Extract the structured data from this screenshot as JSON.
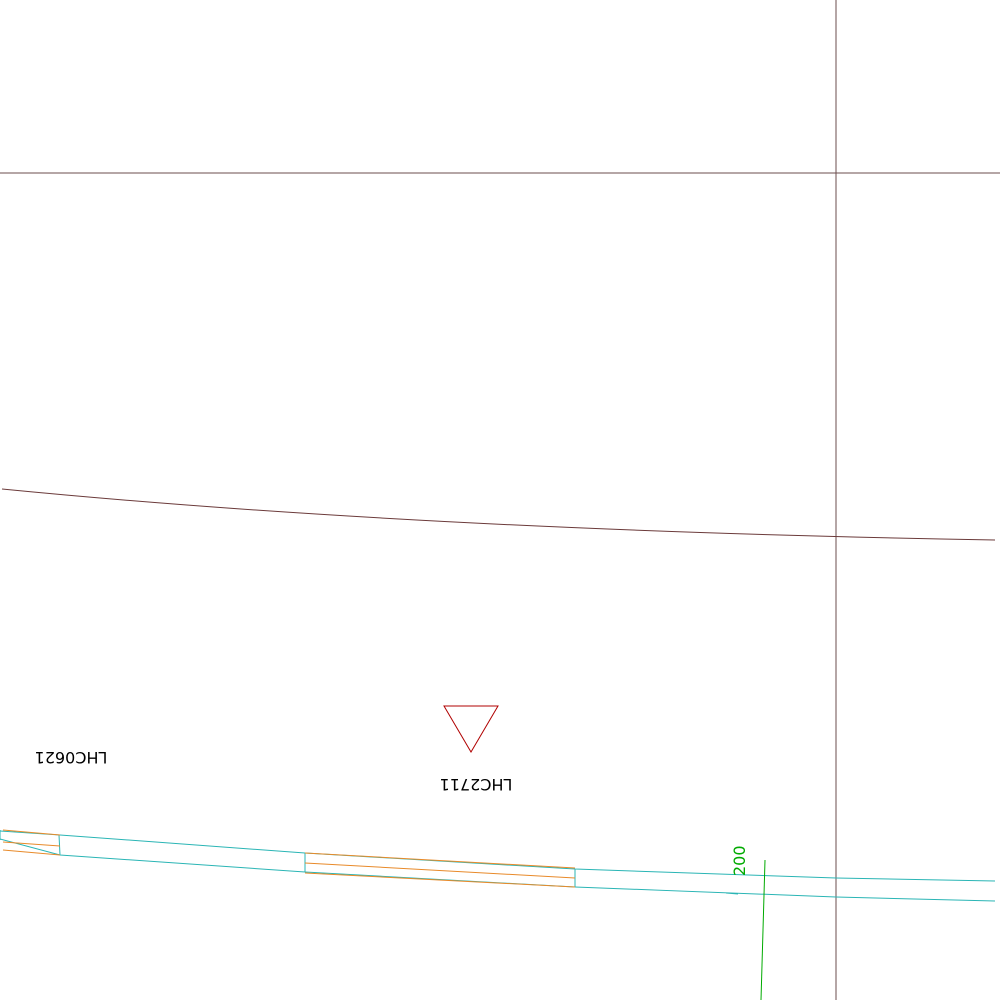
{
  "map": {
    "background_color": "#ffffff",
    "colors": {
      "boundary": "#6b4c4c",
      "contour": "#6b3a3a",
      "road_edge": "#2ab5b5",
      "road_inner": "#e88a2a",
      "marker": "#b00000",
      "contour_label": "#00aa00",
      "label_text": "#000000"
    },
    "labels": {
      "site_left": "LHC0621",
      "site_center": "LHC2711",
      "contour_value": "200"
    },
    "marker_symbol": "inverted-triangle"
  }
}
